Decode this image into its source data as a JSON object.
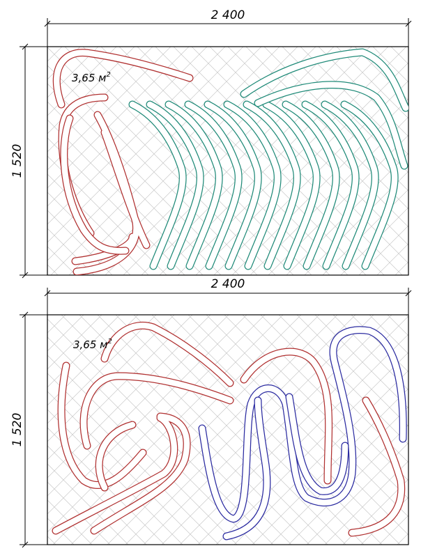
{
  "panels": [
    {
      "width_label": "2 400",
      "height_label": "1 520",
      "area_value": "3,65 м",
      "area_exp": "2",
      "colors": {
        "loop_a": "#b03030",
        "loop_b": "#1f8a78"
      }
    },
    {
      "width_label": "2 400",
      "height_label": "1 520",
      "area_value": "3,65 м",
      "area_exp": "2",
      "colors": {
        "loop_a": "#b03030",
        "loop_b": "#2a2aa0"
      }
    }
  ]
}
